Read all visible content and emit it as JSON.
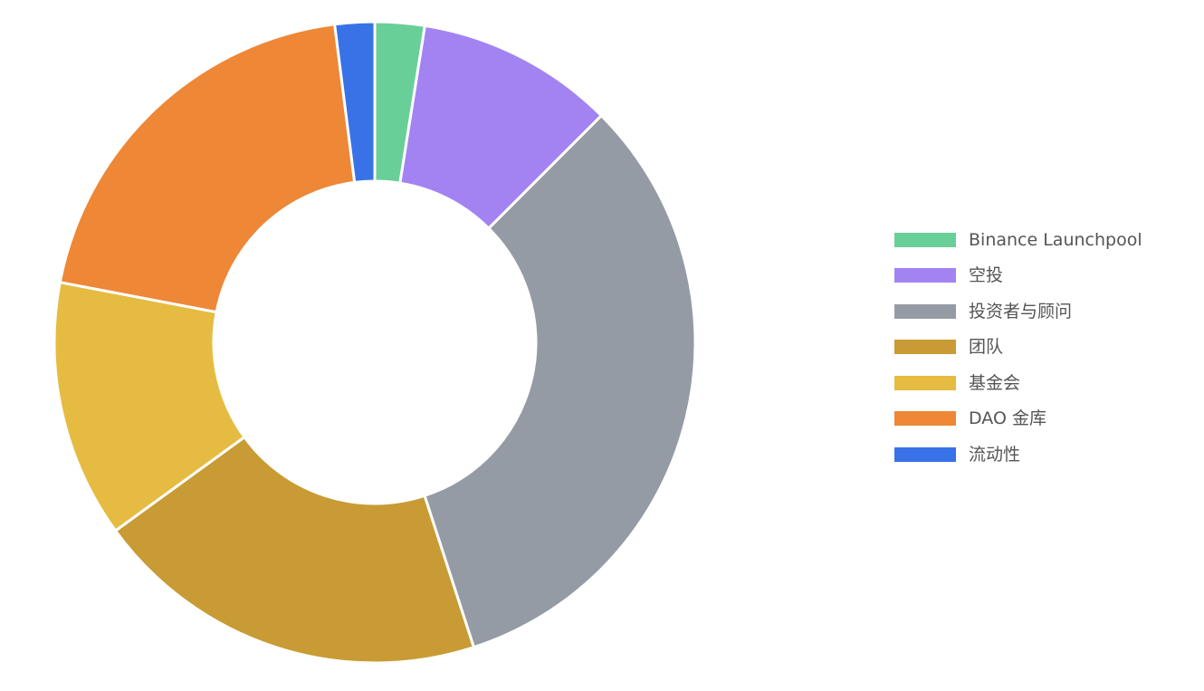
{
  "chart_data": {
    "type": "pie",
    "variant": "donut",
    "title": "",
    "categories": [
      "Binance Launchpool",
      "空投",
      "投资者与顾问",
      "团队",
      "基金会",
      "DAO 金库",
      "流动性"
    ],
    "values": [
      2.5,
      10,
      32.5,
      20,
      13,
      20,
      2
    ],
    "colors": [
      "#69cf98",
      "#a283f1",
      "#959ba4",
      "#c89b34",
      "#e6bb42",
      "#ee8736",
      "#3872e6"
    ],
    "legend": {
      "position": "right",
      "items": [
        {
          "label": "Binance Launchpool",
          "color": "#69cf98"
        },
        {
          "label": "空投",
          "color": "#a283f1"
        },
        {
          "label": "投资者与顾问",
          "color": "#959ba4"
        },
        {
          "label": "团队",
          "color": "#c89b34"
        },
        {
          "label": "基金会",
          "color": "#e6bb42"
        },
        {
          "label": "DAO 金库",
          "color": "#ee8736"
        },
        {
          "label": "流动性",
          "color": "#3872e6"
        }
      ]
    }
  }
}
